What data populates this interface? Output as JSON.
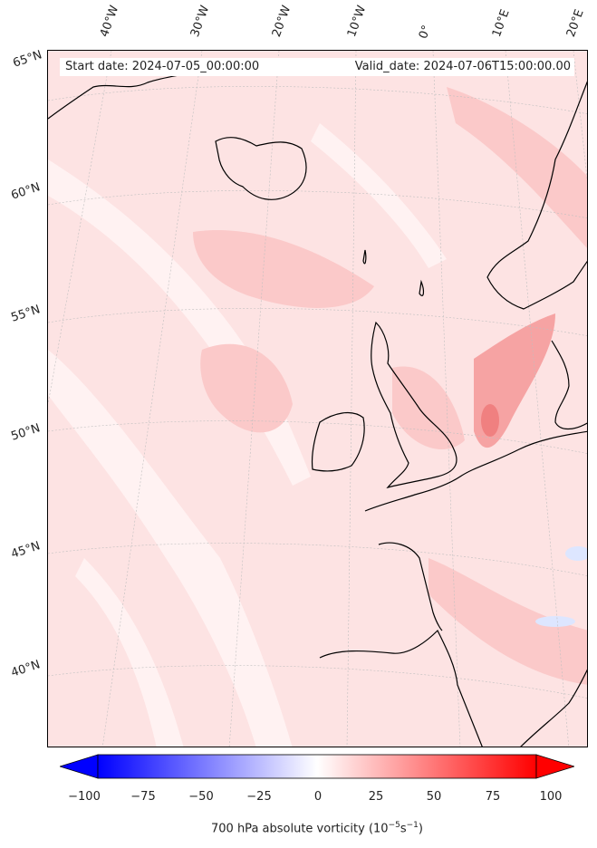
{
  "map": {
    "start_text": "Start date: 2024-07-05_00:00:00",
    "valid_text": "Valid_date: 2024-07-06T15:00:00.00",
    "field_colors": {
      "base": "#fde3e3",
      "light": "#fff2f2",
      "medium": "#fbc9c9",
      "strong": "#f6a3a3",
      "peak": "#f08080",
      "negative": "#dde6ff",
      "coast": "#000000",
      "grid": "#bfbfbf"
    }
  },
  "longitude_labels": [
    "40°W",
    "30°W",
    "20°W",
    "10°W",
    "0°",
    "10°E",
    "20°E"
  ],
  "latitude_labels": [
    "65°N",
    "60°N",
    "55°N",
    "50°N",
    "45°N",
    "40°N"
  ],
  "colorbar": {
    "min": -100,
    "max": 100,
    "ticks": [
      "−100",
      "−75",
      "−50",
      "−25",
      "0",
      "25",
      "50",
      "75",
      "100"
    ],
    "label": "700 hPa absolute vorticity (10",
    "label_exp1": "−5",
    "label_mid": "s",
    "label_exp2": "−1",
    "label_end": ")",
    "cmap": "bwr",
    "extend": "both"
  }
}
